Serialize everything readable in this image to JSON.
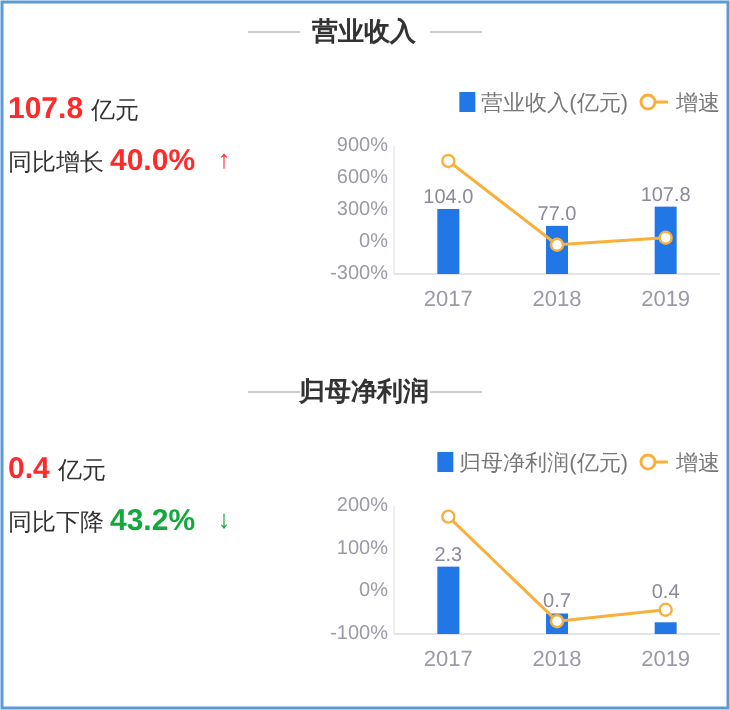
{
  "chart_data": [
    {
      "type": "other",
      "title": "营业收入",
      "annotations": [
        "107.8",
        "亿元",
        "同比增长",
        "40.0%",
        "↑"
      ],
      "colors": [
        "#ff2a2a",
        "#ff2a2a"
      ]
    },
    {
      "type": "bar",
      "categories": [
        "2017",
        "2018",
        "2019"
      ],
      "series": [
        {
          "name": "营业收入(亿元)",
          "type": "bar",
          "axis": "y2",
          "color": "#2277e6",
          "values": [
            104.0,
            77.0,
            107.8
          ],
          "value_labels": [
            "104.0",
            "77.0",
            "107.8"
          ]
        },
        {
          "name": "增速",
          "type": "line",
          "color": "#f9b03a",
          "values": [
            760,
            -26,
            40
          ],
          "marker": "circle"
        }
      ],
      "ylim": [
        -300,
        900
      ],
      "yticks": [
        {
          "value": 900,
          "label": "900%"
        },
        {
          "value": 600,
          "label": "600%"
        },
        {
          "value": 300,
          "label": "300%"
        },
        {
          "value": 0,
          "label": "0%"
        },
        {
          "value": -300,
          "label": "-300%"
        }
      ],
      "legend": "top right"
    },
    {
      "type": "other",
      "title": "归母净利润",
      "annotations": [
        "0.4",
        "亿元",
        "同比下降",
        "43.2%",
        "↓"
      ],
      "colors": [
        "#ff2a2a",
        "#11a83c"
      ]
    },
    {
      "type": "bar",
      "categories": [
        "2017",
        "2018",
        "2019"
      ],
      "series": [
        {
          "name": "归母净利润(亿元)",
          "type": "bar",
          "axis": "y2",
          "color": "#2277e6",
          "values": [
            2.3,
            0.7,
            0.4
          ],
          "value_labels": [
            "2.3",
            "0.7",
            "0.4"
          ]
        },
        {
          "name": "增速",
          "type": "line",
          "color": "#f9b03a",
          "values": [
            175,
            -70,
            -43.2
          ],
          "marker": "circle"
        }
      ],
      "ylim": [
        -100,
        200
      ],
      "yticks": [
        {
          "value": 200,
          "label": "200%"
        },
        {
          "value": 100,
          "label": "100%"
        },
        {
          "value": 0,
          "label": "0%"
        },
        {
          "value": -100,
          "label": "-100%"
        }
      ],
      "legend": "top right"
    }
  ]
}
